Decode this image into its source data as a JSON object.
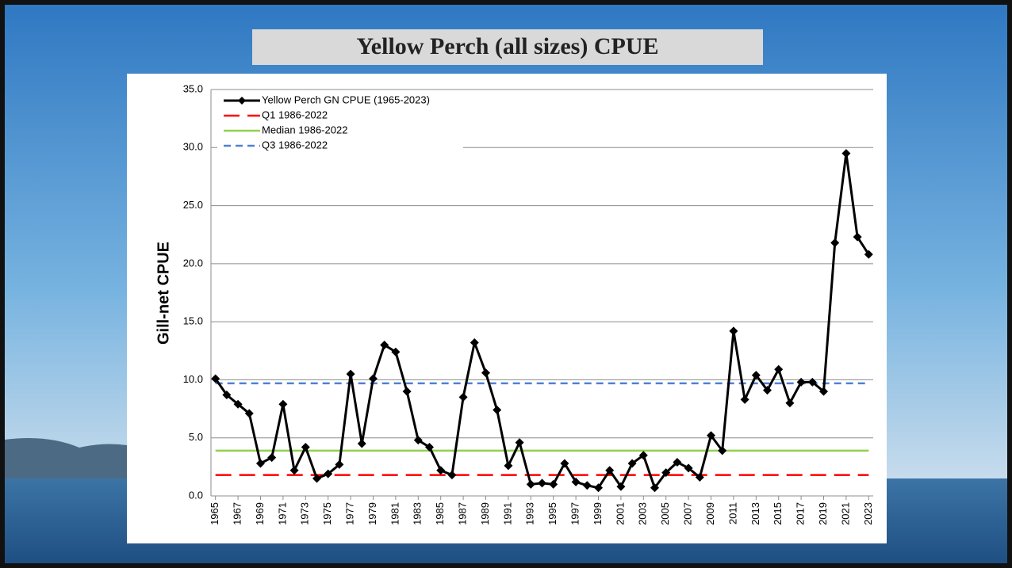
{
  "chart_data": {
    "type": "line",
    "title": "Yellow Perch (all sizes) CPUE",
    "ylabel": "Gill-net CPUE",
    "x": [
      1965,
      1966,
      1967,
      1968,
      1969,
      1970,
      1971,
      1972,
      1973,
      1974,
      1975,
      1976,
      1977,
      1978,
      1979,
      1980,
      1981,
      1982,
      1983,
      1984,
      1985,
      1986,
      1987,
      1988,
      1989,
      1990,
      1991,
      1992,
      1993,
      1994,
      1995,
      1996,
      1997,
      1998,
      1999,
      2000,
      2001,
      2002,
      2003,
      2004,
      2005,
      2006,
      2007,
      2008,
      2009,
      2010,
      2011,
      2012,
      2013,
      2014,
      2015,
      2016,
      2017,
      2018,
      2019,
      2020,
      2021,
      2022,
      2023
    ],
    "series": [
      {
        "name": "Yellow Perch GN CPUE (1965-2023)",
        "color": "#000000",
        "values": [
          10.1,
          8.7,
          7.9,
          7.1,
          2.8,
          3.3,
          7.9,
          2.2,
          4.2,
          1.5,
          1.9,
          2.7,
          10.5,
          4.5,
          10.1,
          13.0,
          12.4,
          9.0,
          4.8,
          4.2,
          2.2,
          1.8,
          8.5,
          13.2,
          10.6,
          7.4,
          2.6,
          4.6,
          1.0,
          1.1,
          1.0,
          2.8,
          1.2,
          0.9,
          0.7,
          2.2,
          0.8,
          2.8,
          3.5,
          0.7,
          2.0,
          2.9,
          2.4,
          1.6,
          5.2,
          3.9,
          14.2,
          8.3,
          10.4,
          9.1,
          10.9,
          8.0,
          9.8,
          9.8,
          9.0,
          21.8,
          29.5,
          22.3,
          20.8
        ]
      }
    ],
    "reference_lines": [
      {
        "name": "Q1 1986-2022",
        "value": 1.8,
        "color": "#ff0000",
        "dash": "long"
      },
      {
        "name": "Median 1986-2022",
        "value": 3.9,
        "color": "#92d050",
        "dash": "solid"
      },
      {
        "name": "Q3 1986-2022",
        "value": 9.7,
        "color": "#4f81d3",
        "dash": "short"
      }
    ],
    "xlim": [
      1964.6,
      2023.4
    ],
    "xticks": [
      1965,
      1967,
      1969,
      1971,
      1973,
      1975,
      1977,
      1979,
      1981,
      1983,
      1985,
      1987,
      1989,
      1991,
      1993,
      1995,
      1997,
      1999,
      2001,
      2003,
      2005,
      2007,
      2009,
      2011,
      2013,
      2015,
      2017,
      2019,
      2021,
      2023
    ],
    "ylim": [
      0,
      35
    ],
    "yticks": [
      {
        "value": 0,
        "label": "0.0"
      },
      {
        "value": 5,
        "label": "5.0"
      },
      {
        "value": 10,
        "label": "10.0"
      },
      {
        "value": 15,
        "label": "15.0"
      },
      {
        "value": 20,
        "label": "20.0"
      },
      {
        "value": 25,
        "label": "25.0"
      },
      {
        "value": 30,
        "label": "30.0"
      },
      {
        "value": 35,
        "label": "35.0"
      }
    ],
    "grid": true,
    "legend": "upper-left"
  }
}
